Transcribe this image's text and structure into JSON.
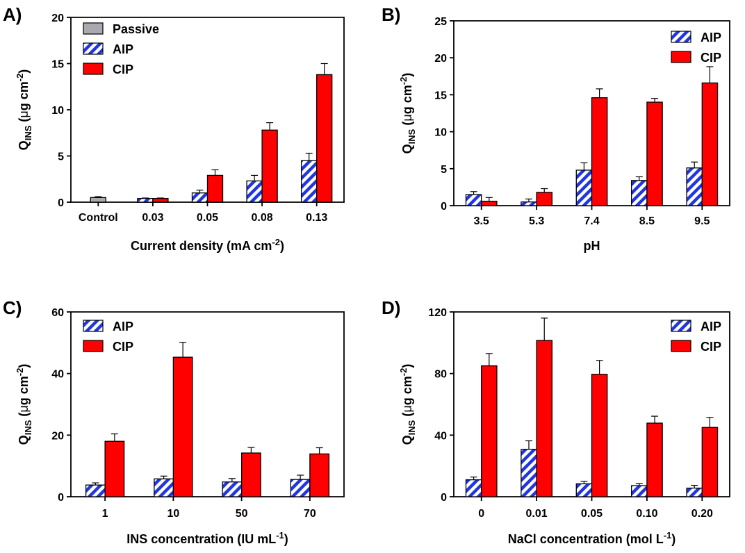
{
  "colors": {
    "passive": "#a9a9b0",
    "aip_stripe": "#1f36e0",
    "cip": "#ff0000"
  },
  "ylabel_parts": {
    "q": "Q",
    "sub": "INS",
    "open": " (",
    "mu": "μ",
    "rest": "g cm",
    "sup": "-2",
    "close": ")"
  },
  "chart_data": [
    {
      "type": "bar",
      "panel": "A)",
      "xlabel": {
        "text": "Current density (mA cm",
        "sup": "-2",
        "tail": ")"
      },
      "ylim": [
        0,
        20
      ],
      "yticks": [
        "0",
        "5",
        "10",
        "15",
        "20"
      ],
      "categories": [
        "Control",
        "0.03",
        "0.05",
        "0.08",
        "0.13"
      ],
      "legend_placement": "top-left",
      "series": [
        {
          "name": "Passive",
          "key": "passive",
          "values": [
            0.5,
            null,
            null,
            null,
            null
          ],
          "errors": [
            0.1,
            null,
            null,
            null,
            null
          ]
        },
        {
          "name": "AIP",
          "key": "aip",
          "values": [
            null,
            0.4,
            1.0,
            2.3,
            4.5
          ],
          "errors": [
            null,
            0.05,
            0.3,
            0.6,
            0.8
          ]
        },
        {
          "name": "CIP",
          "key": "cip",
          "values": [
            null,
            0.4,
            2.9,
            7.8,
            13.8
          ],
          "errors": [
            null,
            0.05,
            0.6,
            0.8,
            1.2
          ]
        }
      ]
    },
    {
      "type": "bar",
      "panel": "B)",
      "xlabel": {
        "text": "pH",
        "sup": "",
        "tail": ""
      },
      "ylim": [
        0,
        25
      ],
      "yticks": [
        "0",
        "5",
        "10",
        "15",
        "20",
        "25"
      ],
      "categories": [
        "3.5",
        "5.3",
        "7.4",
        "8.5",
        "9.5"
      ],
      "legend_placement": "top-right",
      "series": [
        {
          "name": "AIP",
          "key": "aip",
          "values": [
            1.5,
            0.5,
            4.8,
            3.4,
            5.1
          ],
          "errors": [
            0.4,
            0.4,
            1.0,
            0.5,
            0.8
          ]
        },
        {
          "name": "CIP",
          "key": "cip",
          "values": [
            0.6,
            1.8,
            14.6,
            14.0,
            16.6
          ],
          "errors": [
            0.5,
            0.5,
            1.2,
            0.5,
            2.2
          ]
        }
      ]
    },
    {
      "type": "bar",
      "panel": "C)",
      "xlabel": {
        "text": "INS concentration (IU mL",
        "sup": "-1",
        "tail": ")"
      },
      "ylim": [
        0,
        60
      ],
      "yticks": [
        "0",
        "20",
        "40",
        "60"
      ],
      "categories": [
        "1",
        "10",
        "50",
        "70"
      ],
      "legend_placement": "top-left",
      "series": [
        {
          "name": "AIP",
          "key": "aip",
          "values": [
            3.8,
            5.8,
            4.8,
            5.6
          ],
          "errors": [
            0.7,
            0.9,
            1.1,
            1.4
          ]
        },
        {
          "name": "CIP",
          "key": "cip",
          "values": [
            18.0,
            45.3,
            14.2,
            13.9
          ],
          "errors": [
            2.4,
            4.8,
            1.8,
            2.0
          ]
        }
      ]
    },
    {
      "type": "bar",
      "panel": "D)",
      "xlabel": {
        "text": "NaCl concentration (mol L",
        "sup": "-1",
        "tail": ")"
      },
      "ylim": [
        0,
        120
      ],
      "yticks": [
        "0",
        "40",
        "80",
        "120"
      ],
      "categories": [
        "0",
        "0.01",
        "0.05",
        "0.10",
        "0.20"
      ],
      "legend_placement": "top-right",
      "series": [
        {
          "name": "AIP",
          "key": "aip",
          "values": [
            11.0,
            30.8,
            8.4,
            7.2,
            5.6
          ],
          "errors": [
            1.8,
            5.5,
            1.6,
            1.4,
            1.8
          ]
        },
        {
          "name": "CIP",
          "key": "cip",
          "values": [
            85.0,
            101.5,
            79.5,
            47.8,
            45.0
          ],
          "errors": [
            8.0,
            14.5,
            9.0,
            4.5,
            6.5
          ]
        }
      ]
    }
  ]
}
